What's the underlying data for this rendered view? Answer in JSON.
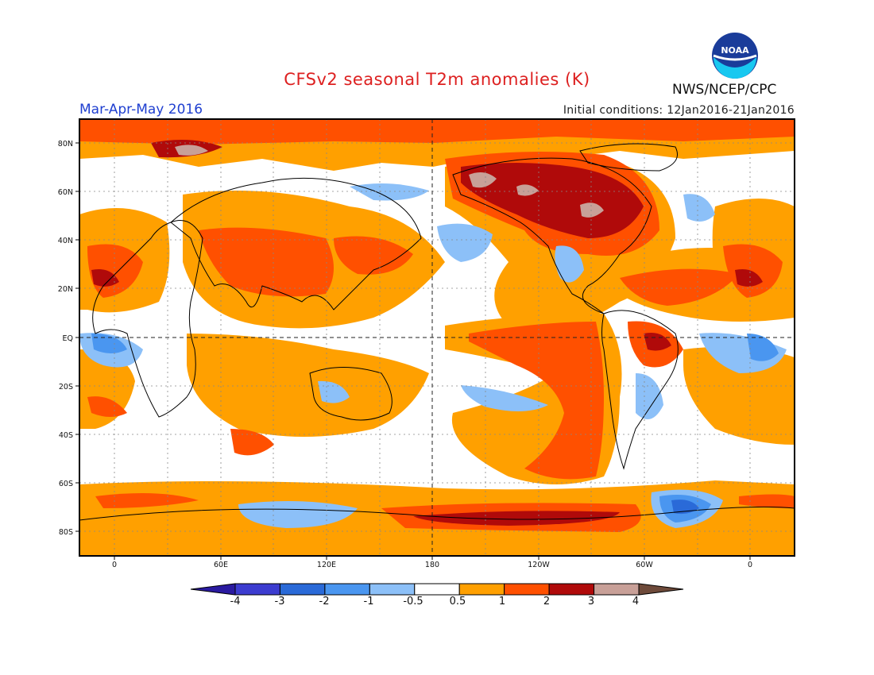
{
  "header": {
    "title": "CFSv2 seasonal T2m anomalies (K)",
    "agency": "NWS/NCEP/CPC",
    "logo_text": "NOAA",
    "season": "Mar-Apr-May 2016",
    "initial_conditions": "Initial conditions: 12Jan2016-21Jan2016"
  },
  "map": {
    "lat_labels": [
      "80N",
      "60N",
      "40N",
      "20N",
      "EQ",
      "20S",
      "40S",
      "60S",
      "80S"
    ],
    "lon_labels": [
      "0",
      "60E",
      "120E",
      "180",
      "120W",
      "60W",
      "0"
    ],
    "projection": "cylindrical equidistant",
    "lon_range": [
      -20,
      380
    ],
    "lat_range": [
      -90,
      90
    ],
    "grid": "dotted"
  },
  "colorbar": {
    "labels": [
      "-4",
      "-3",
      "-2",
      "-1",
      "-0.5",
      "0.5",
      "1",
      "2",
      "3",
      "4"
    ],
    "colors": [
      "#2a1aa0",
      "#3c3cd0",
      "#2a6ad8",
      "#4a96f0",
      "#8cc0f8",
      "#ffffff",
      "#ffa000",
      "#ff5000",
      "#b00a0a",
      "#c8a098",
      "#6e4a3a"
    ]
  }
}
